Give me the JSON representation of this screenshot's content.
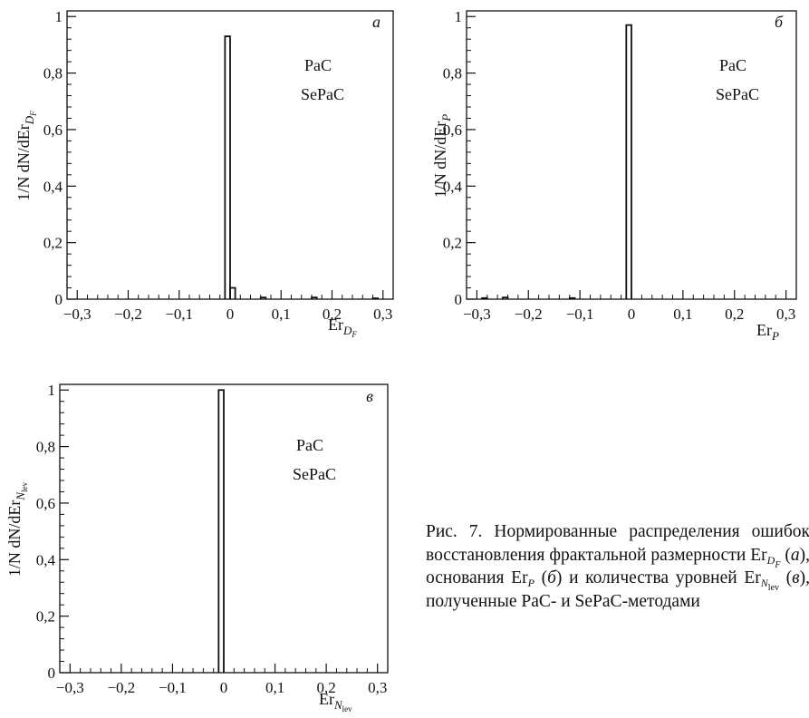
{
  "charts": [
    {
      "panel_letter": "а",
      "y_axis_label": "1/N dN/dEr",
      "y_axis_sub": "D",
      "y_axis_subsub": "F",
      "x_axis_label": "Er",
      "x_axis_sub": "D",
      "x_axis_subsub": "F",
      "legend": [
        "PaC",
        "SePaC"
      ],
      "y_tick_labels": [
        "0",
        "0,2",
        "0,4",
        "0,6",
        "0,8",
        "1"
      ],
      "x_tick_labels": [
        "−0,3",
        "−0,2",
        "−0,1",
        "0",
        "0,1",
        "0,2",
        "0,3"
      ]
    },
    {
      "panel_letter": "б",
      "y_axis_label": "1/N dN/dEr",
      "y_axis_sub": "P",
      "y_axis_subsub": "",
      "x_axis_label": "Er",
      "x_axis_sub": "P",
      "x_axis_subsub": "",
      "legend": [
        "PaC",
        "SePaC"
      ],
      "y_tick_labels": [
        "0",
        "0,2",
        "0,4",
        "0,6",
        "0,8",
        "1"
      ],
      "x_tick_labels": [
        "−0,3",
        "−0,2",
        "−0,1",
        "0",
        "0,1",
        "0,2",
        "0,3"
      ]
    },
    {
      "panel_letter": "в",
      "y_axis_label": "1/N dN/dEr",
      "y_axis_sub": "N",
      "y_axis_subsub": "lev",
      "x_axis_label": "Er",
      "x_axis_sub": "N",
      "x_axis_subsub": "lev",
      "legend": [
        "PaC",
        "SePaC"
      ],
      "y_tick_labels": [
        "0",
        "0,2",
        "0,4",
        "0,6",
        "0,8",
        "1"
      ],
      "x_tick_labels": [
        "−0,3",
        "−0,2",
        "−0,1",
        "0",
        "0,1",
        "0,2",
        "0,3"
      ]
    }
  ],
  "caption": {
    "text_1": "Рис. 7. Нормированные распределения ошибок восстановления фрактальной размерности Er",
    "sub_1": "D",
    "subsub_1": "F",
    "text_2": "(",
    "letter_1": "а",
    "text_3": "), основания Er",
    "sub_2": "P",
    "text_4": "(",
    "letter_2": "б",
    "text_5": ") и количества уровней Er",
    "sub_3": "N",
    "subsub_3": "lev",
    "text_6": "(",
    "letter_3": "в",
    "text_7": "), полученные PaC- и SePaC-методами"
  },
  "chart_data": [
    {
      "type": "bar",
      "panel": "а",
      "title": "",
      "xlabel": "Er_{D_F}",
      "ylabel": "1/N dN/dEr_{D_F}",
      "xlim": [
        -0.32,
        0.32
      ],
      "ylim": [
        0,
        1.02
      ],
      "x_ticks": [
        -0.3,
        -0.2,
        -0.1,
        0,
        0.1,
        0.2,
        0.3
      ],
      "y_ticks": [
        0,
        0.2,
        0.4,
        0.6,
        0.8,
        1
      ],
      "bin_width": 0.01,
      "bins": [
        {
          "x0": -0.01,
          "x1": 0.0,
          "value": 0.93
        },
        {
          "x0": 0.0,
          "x1": 0.01,
          "value": 0.04
        },
        {
          "x0": 0.06,
          "x1": 0.07,
          "value": 0.006
        },
        {
          "x0": 0.16,
          "x1": 0.17,
          "value": 0.006
        },
        {
          "x0": 0.28,
          "x1": 0.29,
          "value": 0.003
        }
      ],
      "series": [
        {
          "name": "PaC"
        },
        {
          "name": "SePaC"
        }
      ],
      "legend_position": "top-right"
    },
    {
      "type": "bar",
      "panel": "б",
      "title": "",
      "xlabel": "Er_P",
      "ylabel": "1/N dN/dEr_P",
      "xlim": [
        -0.32,
        0.32
      ],
      "ylim": [
        0,
        1.02
      ],
      "x_ticks": [
        -0.3,
        -0.2,
        -0.1,
        0,
        0.1,
        0.2,
        0.3
      ],
      "y_ticks": [
        0,
        0.2,
        0.4,
        0.6,
        0.8,
        1
      ],
      "bin_width": 0.01,
      "bins": [
        {
          "x0": -0.29,
          "x1": -0.28,
          "value": 0.004
        },
        {
          "x0": -0.25,
          "x1": -0.24,
          "value": 0.006
        },
        {
          "x0": -0.12,
          "x1": -0.11,
          "value": 0.004
        },
        {
          "x0": -0.01,
          "x1": 0.0,
          "value": 0.97
        }
      ],
      "series": [
        {
          "name": "PaC"
        },
        {
          "name": "SePaC"
        }
      ],
      "legend_position": "top-right"
    },
    {
      "type": "bar",
      "panel": "в",
      "title": "",
      "xlabel": "Er_{N_lev}",
      "ylabel": "1/N dN/dEr_{N_lev}",
      "xlim": [
        -0.32,
        0.32
      ],
      "ylim": [
        0,
        1.02
      ],
      "x_ticks": [
        -0.3,
        -0.2,
        -0.1,
        0,
        0.1,
        0.2,
        0.3
      ],
      "y_ticks": [
        0,
        0.2,
        0.4,
        0.6,
        0.8,
        1
      ],
      "bin_width": 0.01,
      "bins": [
        {
          "x0": -0.01,
          "x1": 0.0,
          "value": 1.0
        }
      ],
      "series": [
        {
          "name": "PaC"
        },
        {
          "name": "SePaC"
        }
      ],
      "legend_position": "top-right"
    }
  ]
}
